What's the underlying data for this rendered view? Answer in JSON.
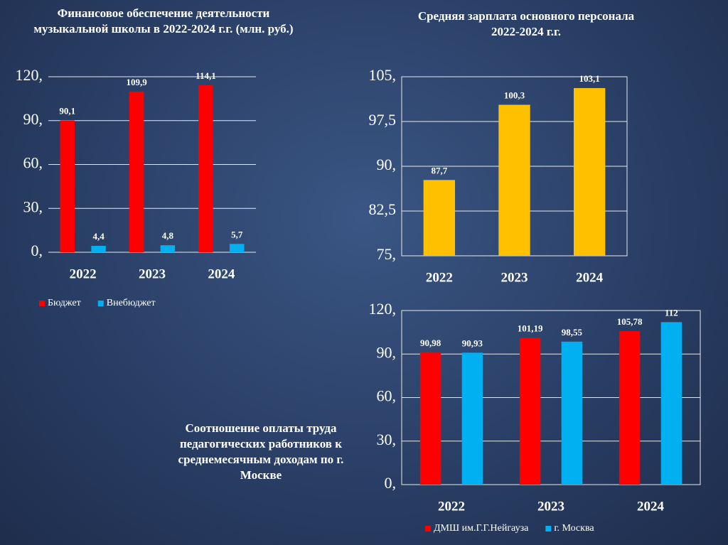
{
  "chart_data": [
    {
      "type": "bar",
      "title": "Финансовое обеспечение деятельности музыкальной школы в 2022-2024 г.г. (млн. руб.)",
      "categories": [
        "2022",
        "2023",
        "2024"
      ],
      "series": [
        {
          "name": "Бюджет",
          "color": "#ff0000",
          "values": [
            90.1,
            109.9,
            114.1
          ],
          "value_labels": [
            "90,1",
            "109,9",
            "114,1"
          ]
        },
        {
          "name": "Внебюджет",
          "color": "#00b0f0",
          "values": [
            4.4,
            4.8,
            5.7
          ],
          "value_labels": [
            "4,4",
            "4,8",
            "5,7"
          ]
        }
      ],
      "ylim": [
        0,
        120
      ],
      "yticks": [
        {
          "value": 0,
          "label": "0,"
        },
        {
          "value": 30,
          "label": "30,"
        },
        {
          "value": 60,
          "label": "60,"
        },
        {
          "value": 90,
          "label": "90,"
        },
        {
          "value": 120,
          "label": "120,"
        }
      ],
      "grid": true,
      "legend": "bottom"
    },
    {
      "type": "bar",
      "title": "Средняя зарплата основного персонала 2022-2024 г.г.",
      "categories": [
        "2022",
        "2023",
        "2024"
      ],
      "series": [
        {
          "color": "#ffc000",
          "values": [
            87.7,
            100.3,
            103.1
          ],
          "value_labels": [
            "87,7",
            "100,3",
            "103,1"
          ]
        }
      ],
      "ylim": [
        75,
        105
      ],
      "yticks": [
        {
          "value": 75,
          "label": "75,"
        },
        {
          "value": 82.5,
          "label": "82,5"
        },
        {
          "value": 90,
          "label": "90,"
        },
        {
          "value": 97.5,
          "label": "97,5"
        },
        {
          "value": 105,
          "label": "105,"
        }
      ],
      "grid": true
    },
    {
      "type": "bar",
      "title": "Соотношение оплаты труда педагогических работников к среднемесячным доходам по г. Москве",
      "categories": [
        "2022",
        "2023",
        "2024"
      ],
      "series": [
        {
          "name": "ДМШ им.Г.Г.Нейгауза",
          "color": "#ff0000",
          "values": [
            90.98,
            101.19,
            105.78
          ],
          "value_labels": [
            "90,98",
            "101,19",
            "105,78"
          ]
        },
        {
          "name": "г. Москва",
          "color": "#00b0f0",
          "values": [
            90.93,
            98.55,
            112
          ],
          "value_labels": [
            "90,93",
            "98,55",
            "112"
          ]
        }
      ],
      "ylim": [
        0,
        120
      ],
      "yticks": [
        {
          "value": 0,
          "label": "0,"
        },
        {
          "value": 30,
          "label": "30,"
        },
        {
          "value": 60,
          "label": "60,"
        },
        {
          "value": 90,
          "label": "90,"
        },
        {
          "value": 120,
          "label": "120,"
        }
      ],
      "grid": true,
      "legend": "bottom"
    }
  ]
}
